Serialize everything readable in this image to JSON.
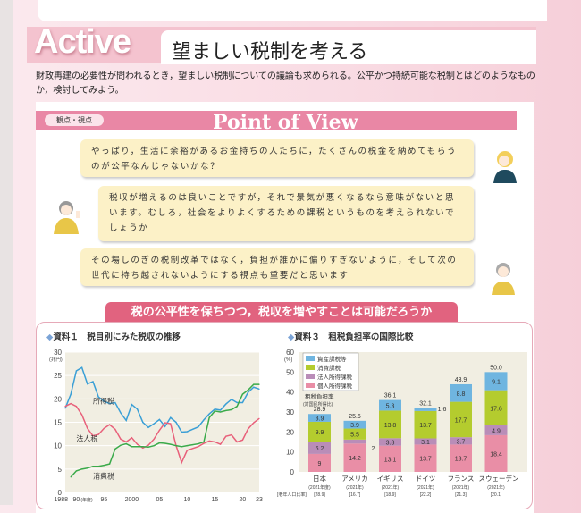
{
  "header": {
    "badge": "Active",
    "title": "望ましい税制を考える"
  },
  "intro": "財政再建の必要性が問われるとき，望ましい税制についての議論も求められる。公平かつ持続可能な税制とはどのようなものか，検討してみよう。",
  "pov": {
    "tag": "観点・視点",
    "title": "Point of View"
  },
  "bubbles": [
    "やっぱり，生活に余裕があるお金持ちの人たちに，たくさんの税金を納めてもらうのが公平なんじゃないかな？",
    "税収が増えるのは良いことですが，それで景気が悪くなるなら意味がないと思います。むしろ，社会をよりよくするための課税というものを考えられないでしょうか",
    "その場しのぎの税制改革ではなく，負担が誰かに偏りすぎないように，そして次の世代に持ち越されないようにする視点も重要だと思います"
  ],
  "question": "税の公平性を保ちつつ，税収を増やすことは可能だろうか",
  "chart_data": [
    {
      "type": "line",
      "label": "資料１",
      "title": "税目別にみた税収の推移",
      "ylabel": "(兆円)",
      "xlabel": "(年度)",
      "ylim": [
        0,
        30
      ],
      "yticks": [
        0,
        5,
        10,
        15,
        20,
        25,
        30
      ],
      "xticks": [
        {
          "x": 1988,
          "label": "1988"
        },
        {
          "x": 1990,
          "label": "90"
        },
        {
          "x": 1995,
          "label": "95"
        },
        {
          "x": 2000,
          "label": "2000"
        },
        {
          "x": 2005,
          "label": "05"
        },
        {
          "x": 2010,
          "label": "10"
        },
        {
          "x": 2015,
          "label": "15"
        },
        {
          "x": 2020,
          "label": "20"
        },
        {
          "x": 2023,
          "label": "23"
        }
      ],
      "xlim": [
        1988,
        2023
      ],
      "series": [
        {
          "name": "所得税",
          "color": "#3a9fd6",
          "start": 1988,
          "values": [
            18,
            21,
            26,
            26.7,
            23.2,
            23.7,
            20.4,
            19.5,
            19,
            19.2,
            17,
            15.4,
            18.8,
            17.8,
            15,
            13.9,
            14.7,
            15.6,
            14.1,
            16,
            15,
            12.9,
            13,
            13.5,
            14,
            15.5,
            16.8,
            17.8,
            17.6,
            18.9,
            19.9,
            19.2,
            19.2,
            21.4,
            22.5,
            22.1
          ]
        },
        {
          "name": "法人税",
          "color": "#e8607a",
          "start": 1988,
          "values": [
            18.4,
            19,
            18.4,
            16.6,
            13.7,
            12.1,
            12.4,
            13.7,
            14.5,
            13.5,
            11.4,
            10.8,
            11.7,
            10.3,
            9.5,
            10.1,
            11.4,
            13.3,
            14.9,
            14.7,
            10,
            6.4,
            9,
            9.4,
            9.8,
            10.5,
            11,
            10.8,
            10.3,
            12,
            12.3,
            10.8,
            11.2,
            13.6,
            14.9,
            15.8
          ]
        },
        {
          "name": "消費税",
          "color": "#3aaa4a",
          "start": 1989,
          "values": [
            3.3,
            4.6,
            5,
            5.2,
            5.6,
            5.6,
            5.8,
            6.1,
            9.3,
            10.1,
            10.4,
            9.8,
            9.8,
            9.8,
            9.7,
            10,
            10.6,
            10.5,
            10.3,
            10,
            9.8,
            10,
            10.2,
            10.4,
            10.8,
            16,
            17.4,
            17.2,
            17.5,
            17.7,
            18.4,
            21,
            21.9,
            23.1,
            23.1
          ]
        }
      ]
    },
    {
      "type": "bar",
      "stacked": true,
      "label": "資料３",
      "title": "租税負担率の国際比較",
      "ylabel": "(%)",
      "ylim": [
        0,
        60
      ],
      "yticks": [
        0,
        10,
        20,
        30,
        40,
        50,
        60
      ],
      "annotation": "租税負担率",
      "annotation_sub": "(対国民所得比)",
      "footnote_label": "[老年人口比率]",
      "categories": [
        {
          "name": "日本",
          "year": "(2021年度)",
          "aging": "[28.9]",
          "total": "28.9"
        },
        {
          "name": "アメリカ",
          "year": "(2021年)",
          "aging": "[16.7]",
          "total": "25.6"
        },
        {
          "name": "イギリス",
          "year": "(2021年)",
          "aging": "[18.9]",
          "total": "36.1"
        },
        {
          "name": "ドイツ",
          "year": "(2021年)",
          "aging": "[22.2]",
          "total": "32.1"
        },
        {
          "name": "フランス",
          "year": "(2021年)",
          "aging": "[21.3]",
          "total": "43.9"
        },
        {
          "name": "スウェーデン",
          "year": "(2021年)",
          "aging": "[20.1]",
          "total": "50.0"
        }
      ],
      "series": [
        {
          "name": "個人所得課税",
          "color": "#e98ea6",
          "values": [
            9.0,
            14.2,
            13.1,
            13.7,
            13.7,
            18.4
          ]
        },
        {
          "name": "法人所得課税",
          "color": "#b98db8",
          "values": [
            6.2,
            2.0,
            3.8,
            3.1,
            3.7,
            4.9
          ]
        },
        {
          "name": "消費課税",
          "color": "#b4cc2e",
          "values": [
            9.9,
            5.5,
            13.8,
            13.7,
            17.7,
            17.6
          ]
        },
        {
          "name": "資産課税等",
          "color": "#6fb5e0",
          "values": [
            3.9,
            3.9,
            5.3,
            1.6,
            8.8,
            9.1
          ]
        }
      ]
    }
  ]
}
